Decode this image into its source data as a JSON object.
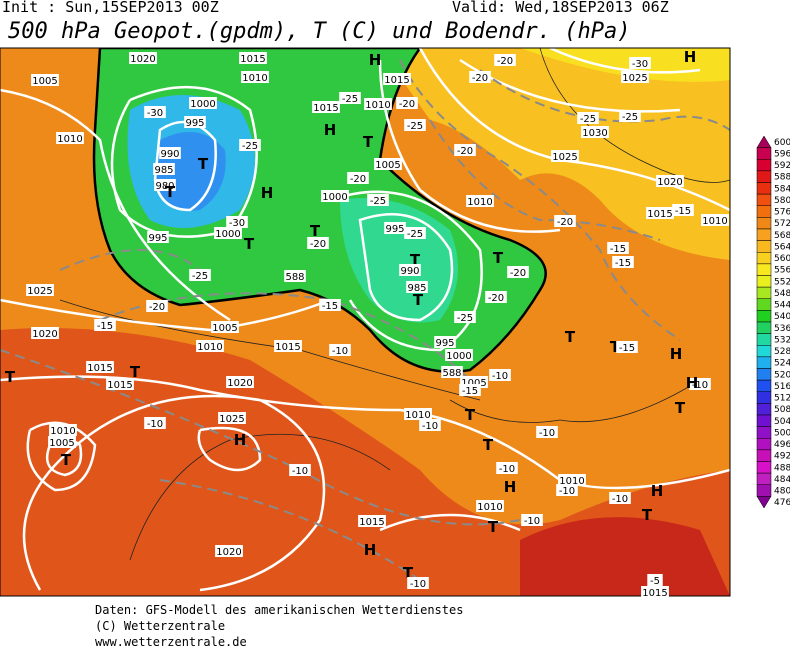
{
  "header": {
    "init": "Init : Sun,15SEP2013 00Z",
    "valid": "Valid: Wed,18SEP2013 06Z",
    "title": "500 hPa Geopot.(gpdm), T (C) und Bodendr. (hPa)"
  },
  "colorbar": {
    "labels": [
      "600",
      "596",
      "592",
      "588",
      "584",
      "580",
      "576",
      "572",
      "568",
      "564",
      "560",
      "556",
      "552",
      "548",
      "544",
      "540",
      "536",
      "532",
      "528",
      "524",
      "520",
      "516",
      "512",
      "508",
      "504",
      "500",
      "496",
      "492",
      "488",
      "484",
      "480",
      "476"
    ],
    "colors": [
      "#a8005a",
      "#c80050",
      "#d80030",
      "#e01818",
      "#e83010",
      "#f05010",
      "#f07010",
      "#f08818",
      "#f8a020",
      "#f8b820",
      "#f8d020",
      "#f8e820",
      "#e8f020",
      "#a8e820",
      "#60d820",
      "#20d020",
      "#20d060",
      "#20d8a0",
      "#20d8d8",
      "#20b0f0",
      "#2080f0",
      "#2050f0",
      "#3030e0",
      "#5020d8",
      "#7010d0",
      "#9010c8",
      "#b010c0",
      "#c810b8",
      "#d810c8",
      "#c020c0",
      "#a010b0",
      "#800090"
    ]
  },
  "map_labels": [
    "1020",
    "1015",
    "1005",
    "1010",
    "1015",
    "-20",
    "-20",
    "-30",
    "1025",
    "H",
    "H",
    "1000",
    "-30",
    "995",
    "1010",
    "-25",
    "1015",
    "1010",
    "H",
    "T",
    "-20",
    "-25",
    "-25",
    "-25",
    "1030",
    "-20",
    "990",
    "985",
    "980",
    "T",
    "T",
    "-25",
    "H",
    "1005",
    "-20",
    "1000",
    "-25",
    "1025",
    "1020",
    "1010",
    "1015",
    "-15",
    "1010",
    "-20",
    "-30",
    "1000",
    "995",
    "T",
    "-20",
    "T",
    "995",
    "-25",
    "T",
    "990",
    "T",
    "-20",
    "-15",
    "-15",
    "-25",
    "588",
    "1025",
    "985",
    "T",
    "-20",
    "-25",
    "-20",
    "-15",
    "-15",
    "1020",
    "1005",
    "1010",
    "995",
    "T",
    "T",
    "-15",
    "H",
    "1015",
    "-10",
    "1000",
    "588",
    "1015",
    "1015",
    "T",
    "T",
    "1020",
    "1005",
    "-10",
    "-15",
    "-10",
    "H",
    "T",
    "1010",
    "-10",
    "1025",
    "H",
    "1010",
    "1005",
    "T",
    "-10",
    "T",
    "-10",
    "T",
    "-10",
    "-10",
    "1010",
    "H",
    "-10",
    "-10",
    "H",
    "1010",
    "T",
    "-10",
    "T",
    "1015",
    "1020",
    "H",
    "T",
    "-10",
    "-5",
    "1015"
  ],
  "footer": [
    "Daten: GFS-Modell des amerikanischen Wetterdienstes",
    "(C) Wetterzentrale",
    "www.wetterzentrale.de"
  ]
}
